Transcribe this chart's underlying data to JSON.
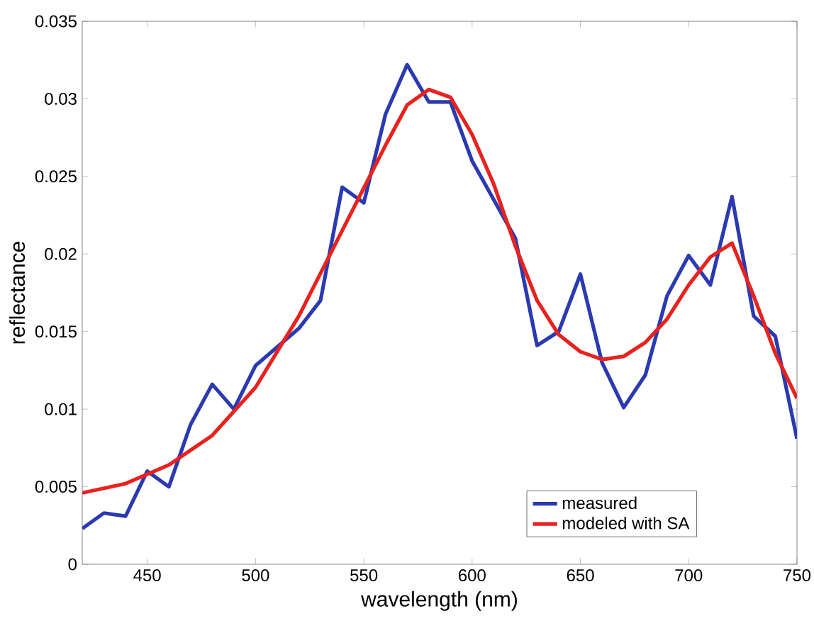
{
  "chart_data": {
    "type": "line",
    "xlabel": "wavelength (nm)",
    "ylabel": "reflectance",
    "xlim": [
      420,
      750
    ],
    "ylim": [
      0,
      0.035
    ],
    "xticks": [
      450,
      500,
      550,
      600,
      650,
      700,
      750
    ],
    "yticks": [
      0,
      0.005,
      0.01,
      0.015,
      0.02,
      0.025,
      0.03,
      0.035
    ],
    "grid": false,
    "legend": "bottom right",
    "line_style": "solid",
    "marker": "none",
    "series": [
      {
        "name": "measured",
        "color": "#2b3ab0",
        "x": [
          420,
          430,
          440,
          450,
          460,
          470,
          480,
          490,
          500,
          510,
          520,
          530,
          540,
          550,
          560,
          570,
          580,
          590,
          600,
          610,
          620,
          630,
          640,
          650,
          660,
          670,
          680,
          690,
          700,
          710,
          720,
          730,
          740,
          750
        ],
        "values": [
          0.0023,
          0.0033,
          0.0031,
          0.006,
          0.005,
          0.009,
          0.0116,
          0.01,
          0.0128,
          0.014,
          0.0152,
          0.017,
          0.0243,
          0.0233,
          0.029,
          0.0322,
          0.0298,
          0.0298,
          0.026,
          0.0235,
          0.021,
          0.0141,
          0.015,
          0.0187,
          0.013,
          0.0101,
          0.0122,
          0.0173,
          0.0199,
          0.018,
          0.0237,
          0.016,
          0.0147,
          0.0081
        ]
      },
      {
        "name": "modeled with SA",
        "color": "#e8221e",
        "x": [
          420,
          440,
          460,
          480,
          500,
          520,
          540,
          560,
          570,
          580,
          590,
          600,
          610,
          620,
          630,
          640,
          650,
          660,
          670,
          680,
          690,
          700,
          710,
          720,
          730,
          740,
          750
        ],
        "values": [
          0.0046,
          0.0052,
          0.0064,
          0.0083,
          0.0114,
          0.016,
          0.0215,
          0.027,
          0.0296,
          0.0306,
          0.0301,
          0.0277,
          0.0245,
          0.0205,
          0.017,
          0.0148,
          0.0137,
          0.0132,
          0.0134,
          0.0143,
          0.0158,
          0.018,
          0.0198,
          0.0207,
          0.0173,
          0.0136,
          0.0107
        ]
      }
    ]
  }
}
